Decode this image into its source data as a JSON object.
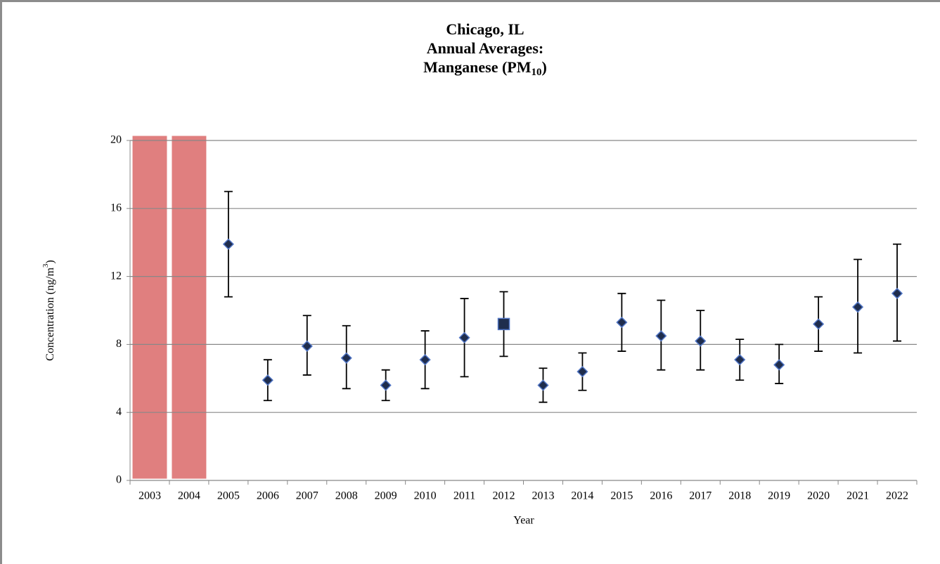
{
  "chart_data": {
    "type": "errorbar",
    "title": [
      {
        "text": "Chicago, IL"
      },
      {
        "text": "Annual Averages:"
      },
      {
        "text": "Manganese (PM",
        "sub": "10",
        "after": ")"
      }
    ],
    "ylabel": {
      "text": "Concentration (ng/m",
      "sup": "3",
      "after": ")"
    },
    "xlabel": "Year",
    "categories": [
      "2003",
      "2004",
      "2005",
      "2006",
      "2007",
      "2008",
      "2009",
      "2010",
      "2011",
      "2012",
      "2013",
      "2014",
      "2015",
      "2016",
      "2017",
      "2018",
      "2019",
      "2020",
      "2021",
      "2022"
    ],
    "values": [
      null,
      null,
      13.9,
      5.9,
      7.9,
      7.2,
      5.6,
      7.1,
      8.4,
      9.2,
      5.6,
      6.4,
      9.3,
      8.5,
      8.2,
      7.1,
      6.8,
      9.2,
      10.2,
      11.0
    ],
    "lows": [
      null,
      null,
      10.8,
      4.7,
      6.2,
      5.4,
      4.7,
      5.4,
      6.1,
      7.3,
      4.6,
      5.3,
      7.6,
      6.5,
      6.5,
      5.9,
      5.7,
      7.6,
      7.5,
      8.2
    ],
    "highs": [
      null,
      null,
      17.0,
      7.1,
      9.7,
      9.1,
      6.5,
      8.8,
      10.7,
      11.1,
      6.6,
      7.5,
      11.0,
      10.6,
      10.0,
      8.3,
      8.0,
      10.8,
      13.0,
      13.9
    ],
    "color": "#1f2d4d",
    "marker_edge_color": "#4f74c4",
    "square_points": [
      9
    ],
    "shaded": [
      0,
      1
    ],
    "shade_color": "#e07f7f",
    "ylim": [
      0,
      20
    ],
    "yticks": [
      0,
      4,
      8,
      12,
      16,
      20
    ],
    "grid": true
  }
}
